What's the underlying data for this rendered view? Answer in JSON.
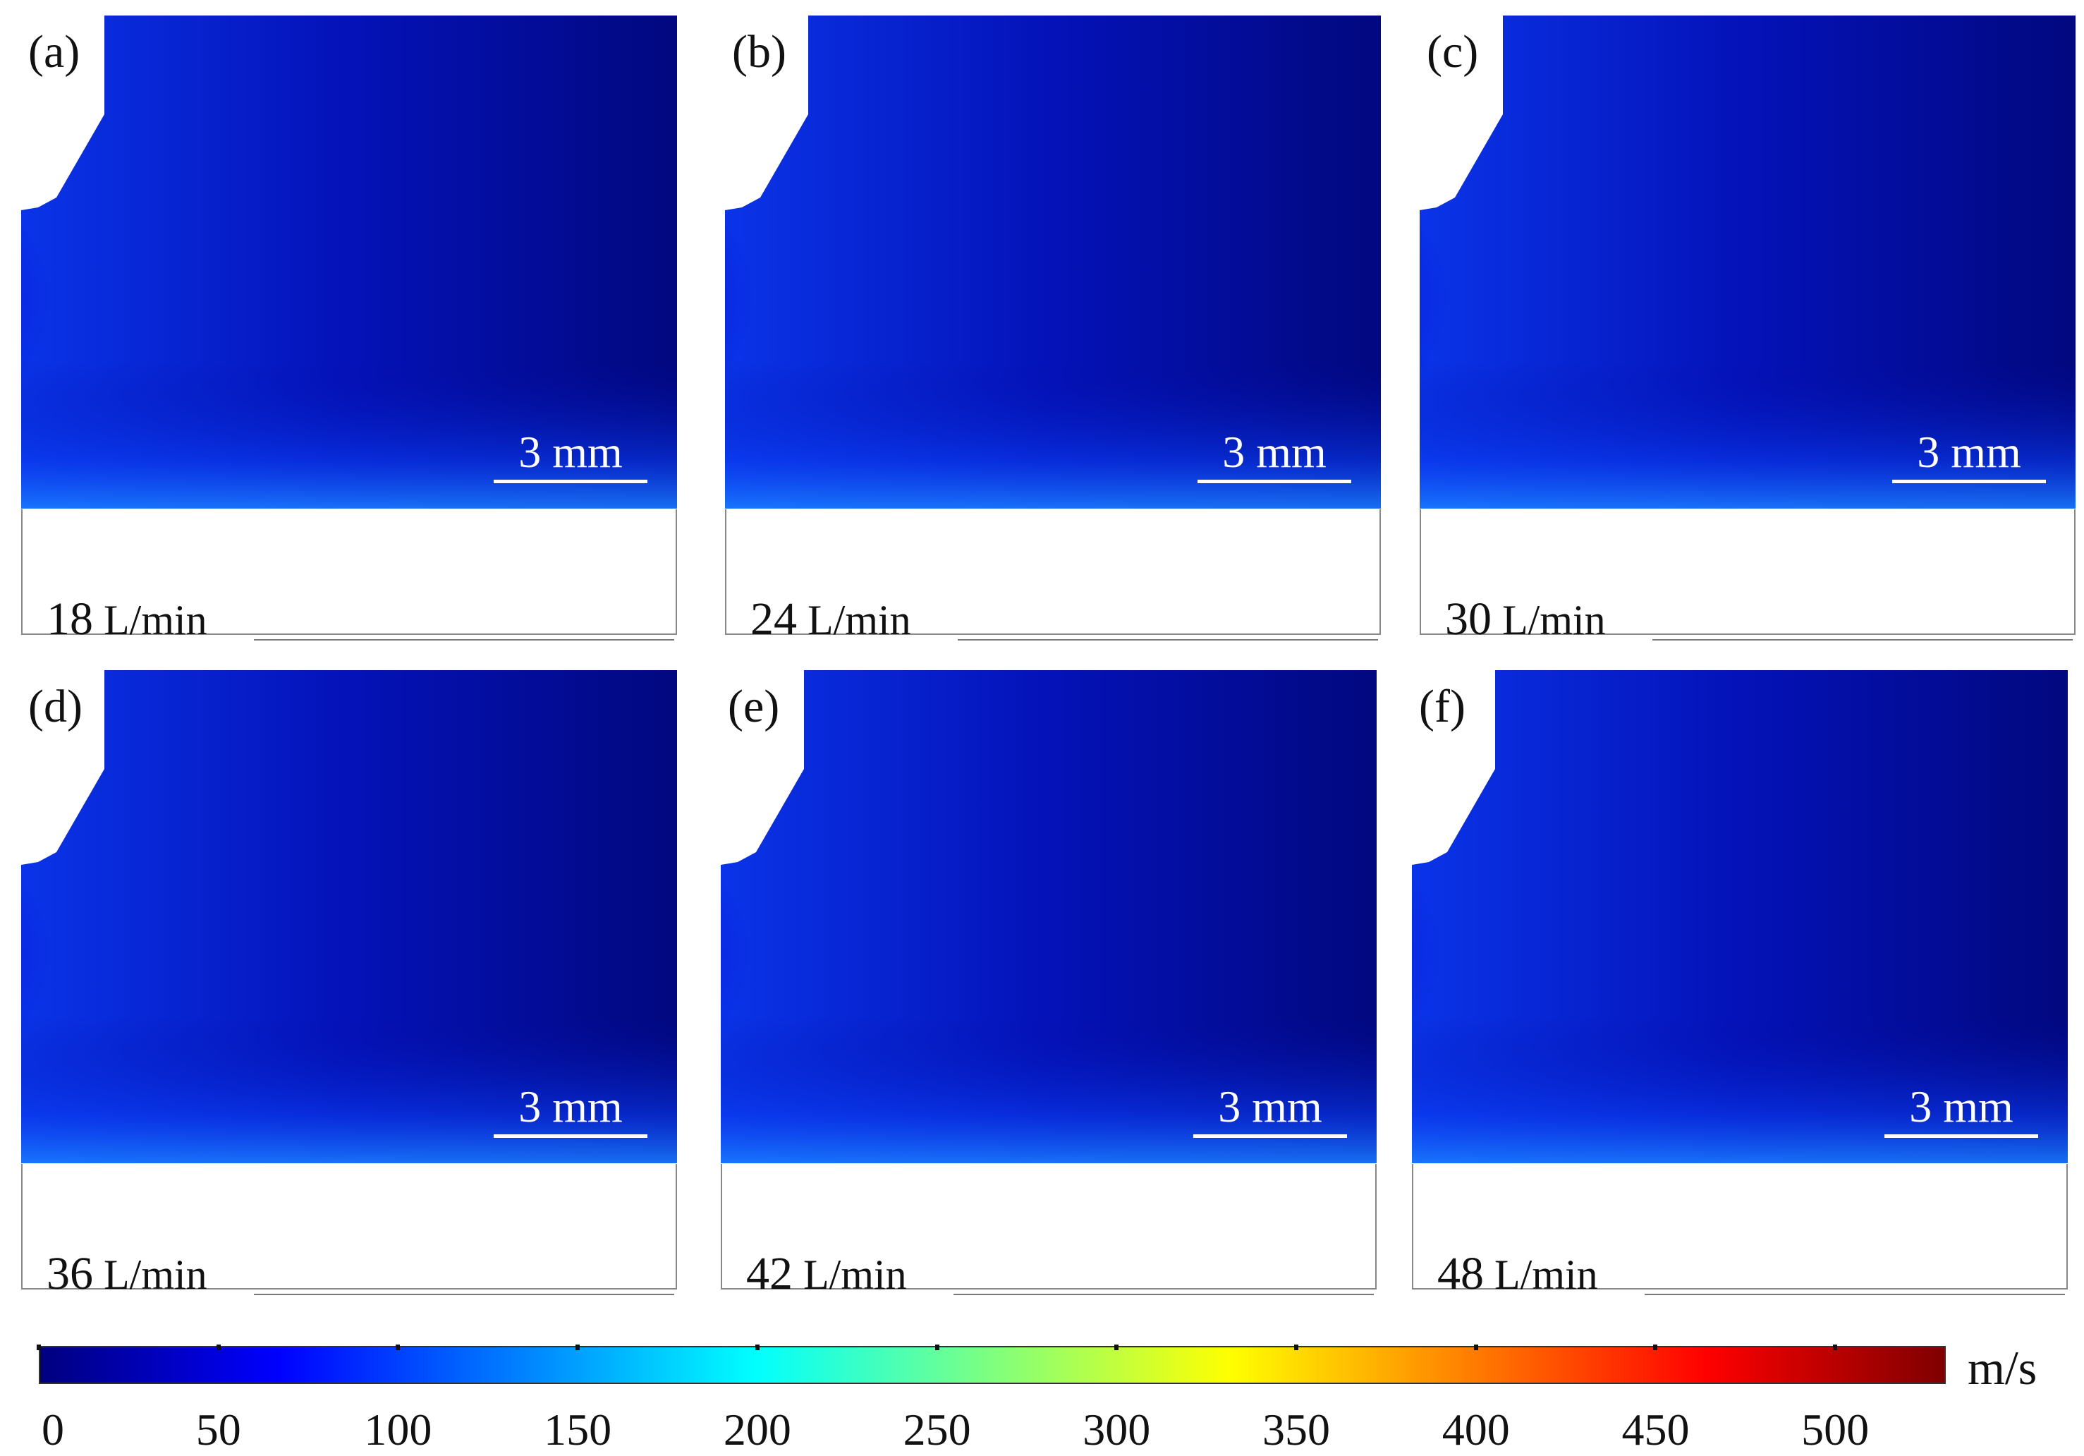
{
  "panels": [
    {
      "tag": "(a)",
      "flow_rate": "18",
      "unit": "L/min",
      "scale": "3 mm",
      "intensity": 0.88
    },
    {
      "tag": "(b)",
      "flow_rate": "24",
      "unit": "L/min",
      "scale": "3 mm",
      "intensity": 0.91
    },
    {
      "tag": "(c)",
      "flow_rate": "30",
      "unit": "L/min",
      "scale": "3 mm",
      "intensity": 0.93
    },
    {
      "tag": "(d)",
      "flow_rate": "36",
      "unit": "L/min",
      "scale": "3 mm",
      "intensity": 0.95
    },
    {
      "tag": "(e)",
      "flow_rate": "42",
      "unit": "L/min",
      "scale": "3 mm",
      "intensity": 0.97
    },
    {
      "tag": "(f)",
      "flow_rate": "48",
      "unit": "L/min",
      "scale": "3 mm",
      "intensity": 0.99
    }
  ],
  "colorbar": {
    "unit": "m/s",
    "ticks": [
      "0",
      "50",
      "100",
      "150",
      "200",
      "250",
      "300",
      "350",
      "400",
      "450",
      "500"
    ],
    "min": 0,
    "max": 530,
    "colormap": [
      "#00007f",
      "#0000ff",
      "#007fff",
      "#00ffff",
      "#7fff7f",
      "#ffff00",
      "#ff7f00",
      "#ff0000",
      "#7f0000"
    ]
  }
}
